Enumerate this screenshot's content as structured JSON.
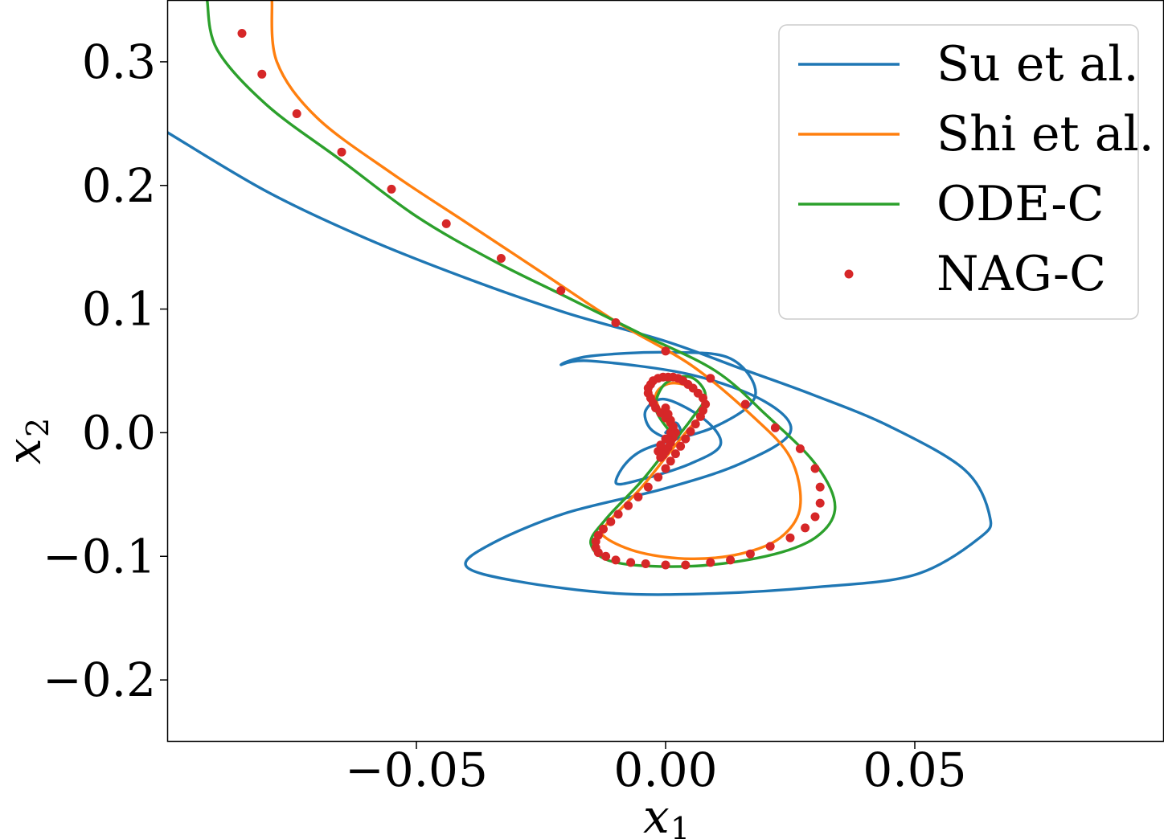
{
  "chart_data": {
    "type": "line",
    "title": "",
    "xlabel": "x",
    "xlabel_sub": "1",
    "ylabel": "x",
    "ylabel_sub": "2",
    "xlim": [
      -0.1,
      0.1
    ],
    "ylim": [
      -0.25,
      0.35
    ],
    "xticks": [
      -0.05,
      0.0,
      0.05
    ],
    "xtick_labels": [
      "−0.05",
      "0.00",
      "0.05"
    ],
    "yticks": [
      -0.2,
      -0.1,
      0.0,
      0.1,
      0.2,
      0.3
    ],
    "ytick_labels": [
      "−0.2",
      "−0.1",
      "0.0",
      "0.1",
      "0.2",
      "0.3"
    ],
    "grid": false,
    "legend_position": "top-right",
    "series": [
      {
        "name": "Su et al.",
        "kind": "line",
        "color": "#1f77b4",
        "x": [
          -0.1,
          -0.08,
          -0.06,
          -0.04,
          -0.02,
          0.0,
          0.015,
          0.03,
          0.045,
          0.06,
          0.065,
          0.063,
          0.05,
          0.03,
          0.01,
          -0.01,
          -0.03,
          -0.04,
          -0.035,
          -0.02,
          0.0,
          0.015,
          0.025,
          0.02,
          0.005,
          -0.015,
          -0.021,
          -0.015,
          0.0,
          0.013,
          0.018,
          0.01,
          -0.005,
          -0.01,
          -0.005,
          0.005,
          0.011,
          0.008,
          0.0,
          -0.004,
          -0.003,
          0.001,
          0.003,
          0.002,
          0.0
        ],
        "y": [
          0.243,
          0.195,
          0.157,
          0.125,
          0.097,
          0.074,
          0.052,
          0.03,
          0.005,
          -0.03,
          -0.067,
          -0.085,
          -0.115,
          -0.125,
          -0.13,
          -0.13,
          -0.12,
          -0.108,
          -0.09,
          -0.065,
          -0.045,
          -0.025,
          0.0,
          0.025,
          0.047,
          0.058,
          0.055,
          0.062,
          0.065,
          0.06,
          0.03,
          0.005,
          -0.015,
          -0.04,
          -0.038,
          -0.025,
          -0.01,
          0.01,
          0.027,
          0.018,
          0.003,
          -0.005,
          0.0,
          0.008,
          0.0
        ]
      },
      {
        "name": "Shi et al.",
        "kind": "line",
        "color": "#ff7f0e",
        "x": [
          -0.079,
          -0.078,
          -0.07,
          -0.055,
          -0.04,
          -0.025,
          -0.01,
          0.005,
          0.017,
          0.025,
          0.027,
          0.023,
          0.015,
          0.005,
          -0.005,
          -0.012,
          -0.012,
          -0.005,
          0.0,
          0.004,
          0.008,
          0.006,
          0.001,
          -0.002,
          0.0,
          0.002
        ],
        "y": [
          0.35,
          0.3,
          0.255,
          0.21,
          0.17,
          0.13,
          0.09,
          0.055,
          0.015,
          -0.02,
          -0.06,
          -0.085,
          -0.098,
          -0.102,
          -0.097,
          -0.085,
          -0.075,
          -0.045,
          -0.02,
          0.0,
          0.02,
          0.035,
          0.04,
          0.03,
          0.01,
          0.0
        ]
      },
      {
        "name": "ODE-C",
        "kind": "line",
        "color": "#2ca02c",
        "x": [
          -0.092,
          -0.09,
          -0.08,
          -0.065,
          -0.05,
          -0.035,
          -0.02,
          -0.005,
          0.01,
          0.02,
          0.03,
          0.034,
          0.03,
          0.02,
          0.005,
          -0.01,
          -0.015,
          -0.012,
          -0.005,
          0.0,
          0.005,
          0.008,
          0.005,
          0.0,
          -0.002,
          0.001
        ],
        "y": [
          0.35,
          0.31,
          0.265,
          0.22,
          0.175,
          0.14,
          0.11,
          0.08,
          0.05,
          0.015,
          -0.025,
          -0.06,
          -0.085,
          -0.1,
          -0.108,
          -0.105,
          -0.09,
          -0.07,
          -0.04,
          -0.015,
          0.01,
          0.03,
          0.045,
          0.04,
          0.02,
          0.0
        ]
      },
      {
        "name": "NAG-C",
        "kind": "scatter",
        "color": "#d62728",
        "x": [
          -0.085,
          -0.081,
          -0.074,
          -0.065,
          -0.055,
          -0.044,
          -0.033,
          -0.021,
          -0.01,
          0.0,
          0.009,
          0.016,
          0.022,
          0.027,
          0.03,
          0.031,
          0.031,
          0.03,
          0.028,
          0.025,
          0.021,
          0.017,
          0.013,
          0.009,
          0.004,
          0.0,
          -0.004,
          -0.007,
          -0.01,
          -0.012,
          -0.0135,
          -0.014,
          -0.014,
          -0.0135,
          -0.0125,
          -0.011,
          -0.0095,
          -0.0075,
          -0.0055,
          -0.0035,
          -0.0015,
          0.0,
          0.001,
          0.002,
          0.003,
          0.004,
          0.005,
          0.006,
          0.007,
          0.0075,
          0.008,
          0.0075,
          0.0065,
          0.0055,
          0.0045,
          0.0035,
          0.0025,
          0.0015,
          0.0005,
          -0.0005,
          -0.0015,
          -0.0025,
          -0.003,
          -0.0035,
          -0.0035,
          -0.003,
          -0.0025,
          -0.002,
          -0.001,
          0.0,
          0.001,
          0.0015,
          0.002,
          0.0015,
          0.001,
          0.0005,
          0.0,
          -0.0005,
          -0.001,
          -0.0015,
          -0.001,
          0.0,
          0.001,
          0.0015,
          0.001,
          0.0005,
          0.0
        ],
        "y": [
          0.323,
          0.29,
          0.258,
          0.227,
          0.197,
          0.169,
          0.141,
          0.115,
          0.089,
          0.066,
          0.044,
          0.023,
          0.004,
          -0.013,
          -0.029,
          -0.044,
          -0.057,
          -0.068,
          -0.077,
          -0.085,
          -0.092,
          -0.098,
          -0.103,
          -0.105,
          -0.107,
          -0.107,
          -0.106,
          -0.105,
          -0.103,
          -0.1,
          -0.097,
          -0.093,
          -0.088,
          -0.083,
          -0.078,
          -0.072,
          -0.066,
          -0.059,
          -0.052,
          -0.044,
          -0.036,
          -0.029,
          -0.023,
          -0.017,
          -0.011,
          -0.005,
          0.001,
          0.007,
          0.013,
          0.018,
          0.023,
          0.028,
          0.032,
          0.036,
          0.039,
          0.042,
          0.044,
          0.045,
          0.045,
          0.045,
          0.044,
          0.042,
          0.039,
          0.036,
          0.032,
          0.028,
          0.024,
          0.02,
          0.016,
          0.012,
          0.008,
          0.004,
          0.0,
          -0.004,
          -0.008,
          -0.012,
          -0.015,
          -0.018,
          -0.02,
          -0.015,
          -0.01,
          -0.005,
          0.0,
          0.005,
          0.01,
          0.015,
          0.02
        ]
      }
    ]
  }
}
